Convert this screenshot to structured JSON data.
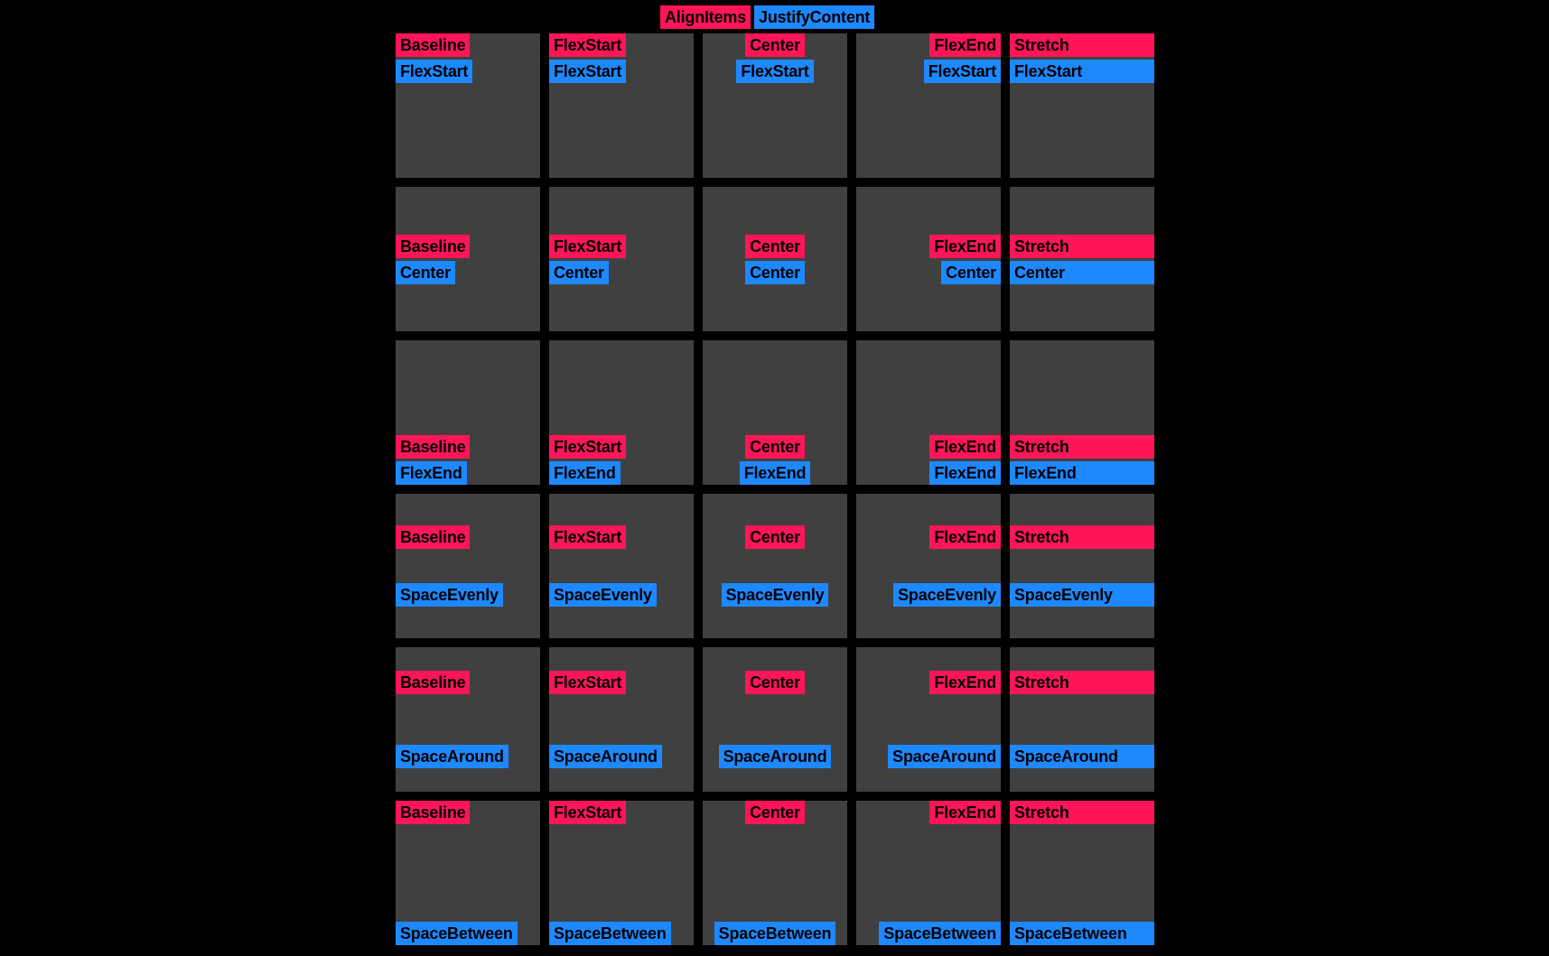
{
  "legend": {
    "align_items_label": "AlignItems",
    "justify_content_label": "JustifyContent"
  },
  "colors": {
    "align_items": "#FF1558",
    "justify_content": "#1E88FF",
    "cell_background": "#404040",
    "page_background": "#000000"
  },
  "rows": [
    {
      "justify": "FlexStart",
      "cells": [
        {
          "align": "Baseline",
          "justify": "FlexStart"
        },
        {
          "align": "FlexStart",
          "justify": "FlexStart"
        },
        {
          "align": "Center",
          "justify": "FlexStart"
        },
        {
          "align": "FlexEnd",
          "justify": "FlexStart"
        },
        {
          "align": "Stretch",
          "justify": "FlexStart"
        }
      ]
    },
    {
      "justify": "Center",
      "cells": [
        {
          "align": "Baseline",
          "justify": "Center"
        },
        {
          "align": "FlexStart",
          "justify": "Center"
        },
        {
          "align": "Center",
          "justify": "Center"
        },
        {
          "align": "FlexEnd",
          "justify": "Center"
        },
        {
          "align": "Stretch",
          "justify": "Center"
        }
      ]
    },
    {
      "justify": "FlexEnd",
      "cells": [
        {
          "align": "Baseline",
          "justify": "FlexEnd"
        },
        {
          "align": "FlexStart",
          "justify": "FlexEnd"
        },
        {
          "align": "Center",
          "justify": "FlexEnd"
        },
        {
          "align": "FlexEnd",
          "justify": "FlexEnd"
        },
        {
          "align": "Stretch",
          "justify": "FlexEnd"
        }
      ]
    },
    {
      "justify": "SpaceEvenly",
      "cells": [
        {
          "align": "Baseline",
          "justify": "SpaceEvenly"
        },
        {
          "align": "FlexStart",
          "justify": "SpaceEvenly"
        },
        {
          "align": "Center",
          "justify": "SpaceEvenly"
        },
        {
          "align": "FlexEnd",
          "justify": "SpaceEvenly"
        },
        {
          "align": "Stretch",
          "justify": "SpaceEvenly"
        }
      ]
    },
    {
      "justify": "SpaceAround",
      "cells": [
        {
          "align": "Baseline",
          "justify": "SpaceAround"
        },
        {
          "align": "FlexStart",
          "justify": "SpaceAround"
        },
        {
          "align": "Center",
          "justify": "SpaceAround"
        },
        {
          "align": "FlexEnd",
          "justify": "SpaceAround"
        },
        {
          "align": "Stretch",
          "justify": "SpaceAround"
        }
      ]
    },
    {
      "justify": "SpaceBetween",
      "cells": [
        {
          "align": "Baseline",
          "justify": "SpaceBetween"
        },
        {
          "align": "FlexStart",
          "justify": "SpaceBetween"
        },
        {
          "align": "Center",
          "justify": "SpaceBetween"
        },
        {
          "align": "FlexEnd",
          "justify": "SpaceBetween"
        },
        {
          "align": "Stretch",
          "justify": "SpaceBetween"
        }
      ]
    }
  ]
}
